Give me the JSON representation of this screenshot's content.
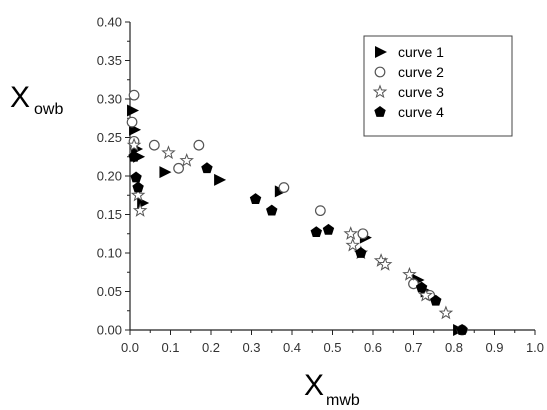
{
  "chart_data": {
    "type": "scatter",
    "title": "",
    "xlabel": {
      "main": "X",
      "sub": "mwb"
    },
    "ylabel": {
      "main": "X",
      "sub": "owb"
    },
    "xlim": [
      0,
      1.0
    ],
    "ylim": [
      0,
      0.4
    ],
    "x_ticks": [
      "0.0",
      "0.1",
      "0.2",
      "0.3",
      "0.4",
      "0.5",
      "0.6",
      "0.7",
      "0.8",
      "0.9",
      "1.0"
    ],
    "y_ticks": [
      "0.00",
      "0.05",
      "0.10",
      "0.15",
      "0.20",
      "0.25",
      "0.30",
      "0.35",
      "0.40"
    ],
    "grid": false,
    "legend": {
      "position": "top-right",
      "boxed": true
    },
    "series": [
      {
        "name": "curve 1",
        "marker": "triangle-right",
        "fill": "#000000",
        "points": [
          [
            0.005,
            0.285
          ],
          [
            0.01,
            0.26
          ],
          [
            0.015,
            0.235
          ],
          [
            0.02,
            0.225
          ],
          [
            0.03,
            0.165
          ],
          [
            0.085,
            0.205
          ],
          [
            0.22,
            0.195
          ],
          [
            0.37,
            0.18
          ],
          [
            0.58,
            0.12
          ],
          [
            0.71,
            0.065
          ],
          [
            0.73,
            0.05
          ],
          [
            0.81,
            0.0
          ]
        ]
      },
      {
        "name": "curve 2",
        "marker": "circle-open",
        "fill": "none",
        "points": [
          [
            0.01,
            0.305
          ],
          [
            0.005,
            0.27
          ],
          [
            0.01,
            0.245
          ],
          [
            0.06,
            0.24
          ],
          [
            0.12,
            0.21
          ],
          [
            0.17,
            0.24
          ],
          [
            0.38,
            0.185
          ],
          [
            0.47,
            0.155
          ],
          [
            0.575,
            0.125
          ],
          [
            0.7,
            0.06
          ],
          [
            0.74,
            0.045
          ],
          [
            0.82,
            0.0
          ]
        ]
      },
      {
        "name": "curve 3",
        "marker": "star-open",
        "fill": "none",
        "points": [
          [
            0.01,
            0.24
          ],
          [
            0.02,
            0.175
          ],
          [
            0.025,
            0.155
          ],
          [
            0.095,
            0.23
          ],
          [
            0.14,
            0.22
          ],
          [
            0.545,
            0.125
          ],
          [
            0.55,
            0.11
          ],
          [
            0.57,
            0.1
          ],
          [
            0.62,
            0.09
          ],
          [
            0.63,
            0.085
          ],
          [
            0.69,
            0.072
          ],
          [
            0.73,
            0.045
          ],
          [
            0.78,
            0.022
          ]
        ]
      },
      {
        "name": "curve 4",
        "marker": "pentagon",
        "fill": "#000000",
        "points": [
          [
            0.01,
            0.225
          ],
          [
            0.015,
            0.198
          ],
          [
            0.02,
            0.185
          ],
          [
            0.19,
            0.21
          ],
          [
            0.31,
            0.17
          ],
          [
            0.35,
            0.155
          ],
          [
            0.46,
            0.127
          ],
          [
            0.49,
            0.13
          ],
          [
            0.57,
            0.1
          ],
          [
            0.72,
            0.055
          ],
          [
            0.755,
            0.038
          ],
          [
            0.82,
            0.0
          ]
        ]
      }
    ]
  }
}
